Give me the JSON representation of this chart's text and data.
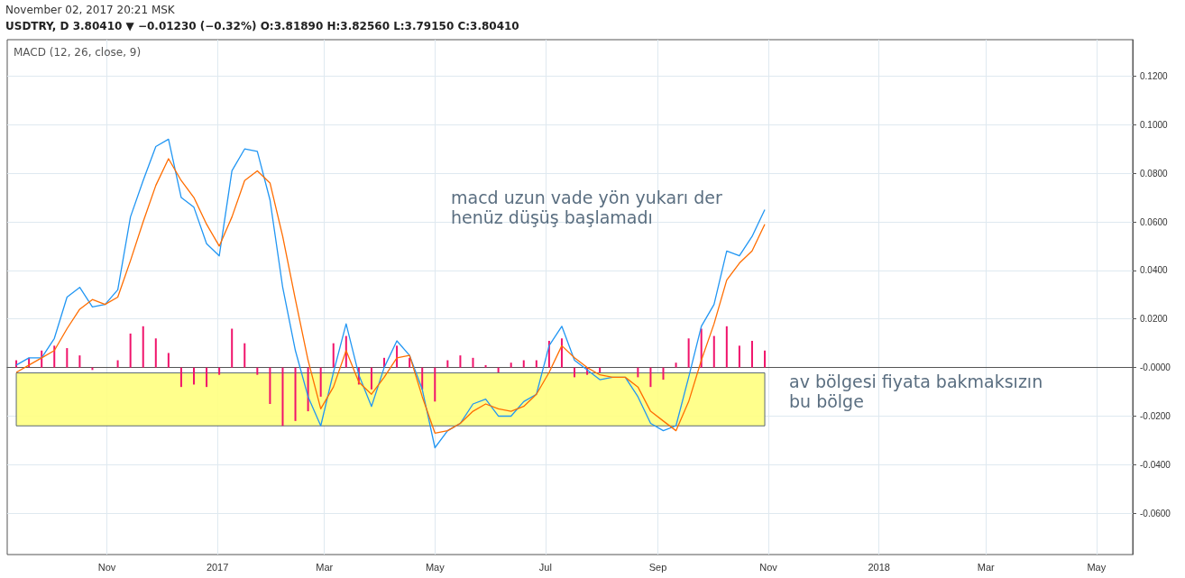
{
  "chart_data": {
    "type": "line",
    "title": "USDTRY, D 3.80410 ▼ −0.01230 (−0.32%) O:3.81890 H:3.82560 L:3.79150 C:3.80410",
    "subtitle": "November 02, 2017 20:21 MSK",
    "x": [
      "2016-09-12",
      "2016-09-19",
      "2016-09-26",
      "2016-10-03",
      "2016-10-10",
      "2016-10-17",
      "2016-10-24",
      "2016-10-31",
      "2016-11-07",
      "2016-11-14",
      "2016-11-21",
      "2016-11-28",
      "2016-12-05",
      "2016-12-12",
      "2016-12-19",
      "2016-12-26",
      "2017-01-02",
      "2017-01-09",
      "2017-01-16",
      "2017-01-23",
      "2017-01-30",
      "2017-02-06",
      "2017-02-13",
      "2017-02-20",
      "2017-02-27",
      "2017-03-06",
      "2017-03-13",
      "2017-03-20",
      "2017-03-27",
      "2017-04-03",
      "2017-04-10",
      "2017-04-17",
      "2017-04-24",
      "2017-05-01",
      "2017-05-08",
      "2017-05-15",
      "2017-05-22",
      "2017-05-29",
      "2017-06-05",
      "2017-06-12",
      "2017-06-19",
      "2017-06-26",
      "2017-07-03",
      "2017-07-10",
      "2017-07-17",
      "2017-07-24",
      "2017-07-31",
      "2017-08-07",
      "2017-08-14",
      "2017-08-21",
      "2017-08-28",
      "2017-09-04",
      "2017-09-11",
      "2017-09-18",
      "2017-09-25",
      "2017-10-02",
      "2017-10-09",
      "2017-10-16",
      "2017-10-23",
      "2017-10-30"
    ],
    "series": [
      {
        "type": "bar",
        "color": "#f0136b",
        "values": [
          0.003,
          0.004,
          0.007,
          0.009,
          0.008,
          0.005,
          -0.001,
          0.0,
          0.003,
          0.014,
          0.017,
          0.012,
          0.006,
          -0.008,
          -0.007,
          -0.008,
          -0.003,
          0.016,
          0.01,
          -0.003,
          -0.015,
          -0.024,
          -0.022,
          -0.018,
          -0.012,
          0.01,
          0.013,
          -0.007,
          -0.009,
          0.004,
          0.009,
          0.004,
          -0.009,
          -0.014,
          0.003,
          0.005,
          0.004,
          0.001,
          -0.002,
          0.002,
          0.003,
          0.003,
          0.011,
          0.012,
          -0.004,
          -0.003,
          -0.002,
          0.0,
          0.0,
          -0.004,
          -0.008,
          -0.005,
          0.002,
          0.012,
          0.016,
          0.013,
          0.017,
          0.009,
          0.011,
          0.007
        ]
      },
      {
        "color": "#2196f3",
        "values": [
          0.001,
          0.004,
          0.004,
          0.012,
          0.029,
          0.033,
          0.025,
          0.026,
          0.032,
          0.062,
          0.077,
          0.091,
          0.094,
          0.07,
          0.066,
          0.051,
          0.046,
          0.081,
          0.09,
          0.089,
          0.069,
          0.033,
          0.007,
          -0.012,
          -0.024,
          -0.002,
          0.018,
          -0.003,
          -0.016,
          0.0,
          0.011,
          0.005,
          -0.009,
          -0.033,
          -0.026,
          -0.023,
          -0.015,
          -0.013,
          -0.02,
          -0.02,
          -0.014,
          -0.011,
          0.009,
          0.017,
          0.003,
          -0.001,
          -0.005,
          -0.004,
          -0.004,
          -0.012,
          -0.023,
          -0.026,
          -0.024,
          -0.004,
          0.017,
          0.026,
          0.048,
          0.046,
          0.054,
          0.065
        ]
      },
      {
        "color": "#ff6d00",
        "values": [
          -0.002,
          0.001,
          0.004,
          0.007,
          0.016,
          0.024,
          0.028,
          0.026,
          0.029,
          0.044,
          0.06,
          0.075,
          0.086,
          0.077,
          0.07,
          0.059,
          0.05,
          0.062,
          0.077,
          0.081,
          0.076,
          0.054,
          0.028,
          0.003,
          -0.017,
          -0.008,
          0.007,
          -0.006,
          -0.011,
          -0.004,
          0.004,
          0.005,
          -0.012,
          -0.027,
          -0.026,
          -0.023,
          -0.018,
          -0.015,
          -0.017,
          -0.018,
          -0.016,
          -0.011,
          -0.002,
          0.009,
          0.004,
          0.0,
          -0.003,
          -0.004,
          -0.004,
          -0.008,
          -0.018,
          -0.022,
          -0.026,
          -0.014,
          0.003,
          0.018,
          0.036,
          0.043,
          0.048,
          0.059
        ]
      }
    ],
    "xlim": [
      "2016-09-07",
      "2018-05-21"
    ],
    "xticks": [
      {
        "value": "2016-11-01",
        "label": "Nov"
      },
      {
        "value": "2017-01-01",
        "label": "2017"
      },
      {
        "value": "2017-03-01",
        "label": "Mar"
      },
      {
        "value": "2017-05-01",
        "label": "May"
      },
      {
        "value": "2017-07-01",
        "label": "Jul"
      },
      {
        "value": "2017-09-01",
        "label": "Sep"
      },
      {
        "value": "2017-11-01",
        "label": "Nov"
      },
      {
        "value": "2018-01-01",
        "label": "2018"
      },
      {
        "value": "2018-03-01",
        "label": "Mar"
      },
      {
        "value": "2018-05-01",
        "label": "May"
      }
    ],
    "ylim": [
      -0.077,
      0.135
    ],
    "yticks": [
      {
        "value": -0.06,
        "label": "-0.0600"
      },
      {
        "value": -0.04,
        "label": "-0.0400"
      },
      {
        "value": -0.02,
        "label": "-0.0200"
      },
      {
        "value": 0,
        "label": "-0.0000"
      },
      {
        "value": 0.02,
        "label": "0.0200"
      },
      {
        "value": 0.04,
        "label": "0.0400"
      },
      {
        "value": 0.06,
        "label": "0.0600"
      },
      {
        "value": 0.08,
        "label": "0.0800"
      },
      {
        "value": 0.1,
        "label": "0.1000"
      },
      {
        "value": 0.12,
        "label": "0.1200"
      }
    ],
    "bands": [
      {
        "axis": "y",
        "from": -0.024,
        "to": -0.0022,
        "color": "#ffff80"
      }
    ],
    "annotations": [
      "MACD (12, 26, close, 9)",
      "macd uzun vade yön yukarı der\nhenüz düşüş başlamadı",
      "av bölgesi fiyata bakmaksızın\nbu bölge"
    ],
    "grid": true,
    "marker": "none"
  }
}
